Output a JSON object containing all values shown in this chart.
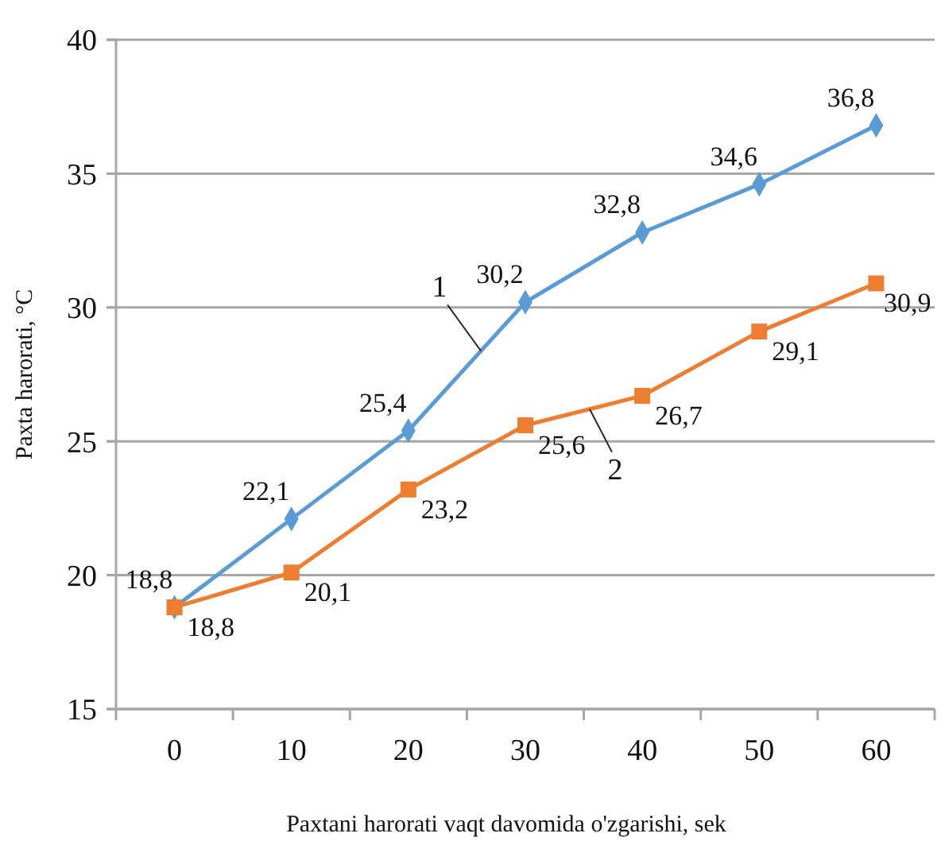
{
  "chart_data": {
    "type": "line",
    "xlabel": "Paxtani harorati vaqt davomida o'zgarishi, sek",
    "ylabel": "Paxta harorati, °C",
    "categories": [
      "0",
      "10",
      "20",
      "30",
      "40",
      "50",
      "60"
    ],
    "ylim": [
      15,
      40
    ],
    "yticks": [
      15,
      20,
      25,
      30,
      35,
      40
    ],
    "grid": "y",
    "series": [
      {
        "name": "1",
        "color": "#5b9bd5",
        "marker": "diamond",
        "values": [
          18.8,
          22.1,
          25.4,
          30.2,
          32.8,
          34.6,
          36.8
        ],
        "value_labels": [
          "18,8",
          "22,1",
          "25,4",
          "30,2",
          "32,8",
          "34,6",
          "36,8"
        ]
      },
      {
        "name": "2",
        "color": "#ed7d31",
        "marker": "square",
        "values": [
          18.8,
          20.1,
          23.2,
          25.6,
          26.7,
          29.1,
          30.9
        ],
        "value_labels": [
          "18,8",
          "20,1",
          "23,2",
          "25,6",
          "26,7",
          "29,1",
          "30,9"
        ]
      }
    ]
  }
}
